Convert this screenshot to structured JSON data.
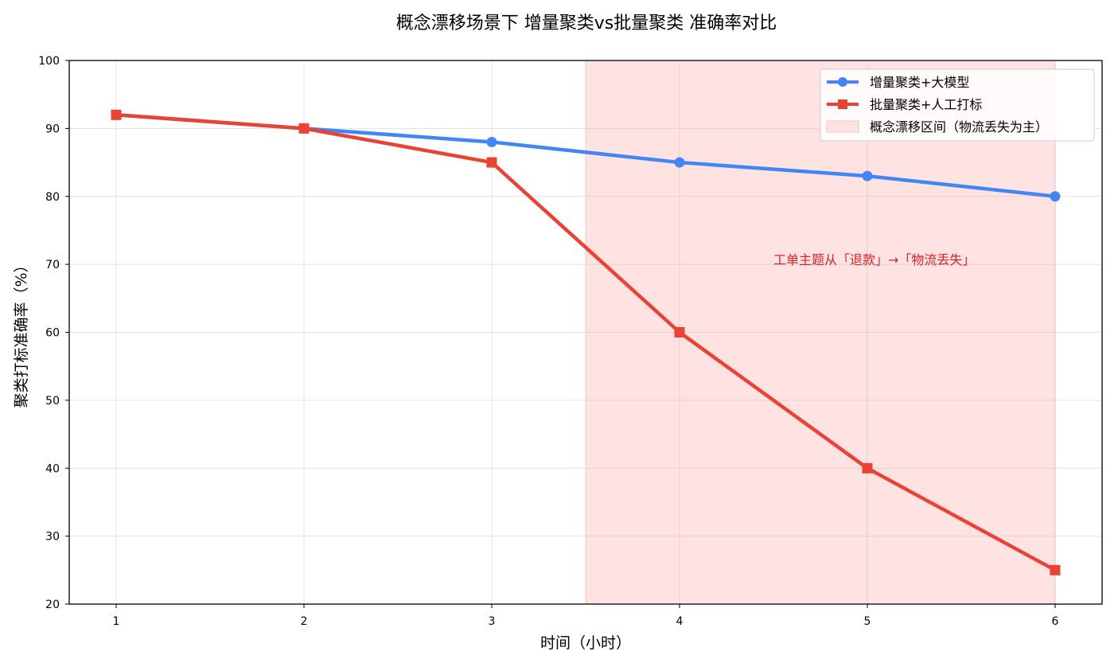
{
  "chart_data": {
    "type": "line",
    "title": "概念漂移场景下 增量聚类vs批量聚类 准确率对比",
    "xlabel": "时间（小时）",
    "ylabel": "聚类打标准确率（%）",
    "x": [
      1,
      2,
      3,
      4,
      5,
      6
    ],
    "xlim": [
      0.75,
      6.25
    ],
    "ylim": [
      20,
      100
    ],
    "xticks": [
      1,
      2,
      3,
      4,
      5,
      6
    ],
    "yticks": [
      20,
      30,
      40,
      50,
      60,
      70,
      80,
      90,
      100
    ],
    "grid": true,
    "legend_position": "top-right",
    "series": [
      {
        "name": "增量聚类+大模型",
        "values": [
          92,
          90,
          88,
          85,
          83,
          80
        ],
        "color": "#4285F4",
        "marker": "circle"
      },
      {
        "name": "批量聚类+人工打标",
        "values": [
          92,
          90,
          85,
          60,
          40,
          25
        ],
        "color": "#EA4335",
        "marker": "square"
      }
    ],
    "shaded_region": {
      "name": "概念漂移区间（物流丢失为主）",
      "x_start": 3.5,
      "x_end": 6,
      "color": "#FFE3E3"
    },
    "annotation": {
      "text": "工单主题从「退款」→「物流丢失」",
      "x": 4.5,
      "y": 70,
      "color": "#E02020"
    }
  }
}
